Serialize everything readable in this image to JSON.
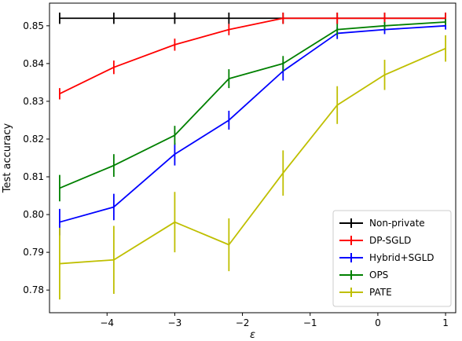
{
  "chart_data": {
    "type": "line",
    "title": "",
    "xlabel": "ε",
    "ylabel": "Test accuracy",
    "xlim": [
      -4.85,
      1.15
    ],
    "ylim": [
      0.774,
      0.856
    ],
    "xticks": [
      -4,
      -3,
      -2,
      -1,
      0,
      1
    ],
    "xtick_labels": [
      "−4",
      "−3",
      "−2",
      "−1",
      "0",
      "1"
    ],
    "yticks": [
      0.78,
      0.79,
      0.8,
      0.81,
      0.82,
      0.83,
      0.84,
      0.85
    ],
    "ytick_labels": [
      "0.78",
      "0.79",
      "0.80",
      "0.81",
      "0.82",
      "0.83",
      "0.84",
      "0.85"
    ],
    "grid": false,
    "legend_position": "lower-right",
    "x": [
      -4.7,
      -3.9,
      -3.0,
      -2.2,
      -1.4,
      -0.6,
      0.1,
      1.0
    ],
    "series": [
      {
        "name": "Non-private",
        "color": "#000000",
        "values": [
          0.852,
          0.852,
          0.852,
          0.852,
          0.852,
          0.852,
          0.852,
          0.852
        ],
        "errors": [
          0.0015,
          0.0015,
          0.0015,
          0.0015,
          0.0015,
          0.0015,
          0.0015,
          0.0015
        ]
      },
      {
        "name": "DP-SGLD",
        "color": "#ff0000",
        "values": [
          0.832,
          0.839,
          0.845,
          0.849,
          0.852,
          0.852,
          0.852,
          0.852
        ],
        "errors": [
          0.0015,
          0.0018,
          0.0016,
          0.0015,
          0.0015,
          0.0015,
          0.0015,
          0.0015
        ]
      },
      {
        "name": "Hybrid+SGLD",
        "color": "#0000ff",
        "values": [
          0.798,
          0.802,
          0.816,
          0.825,
          0.838,
          0.848,
          0.849,
          0.85
        ],
        "errors": [
          0.0035,
          0.0035,
          0.003,
          0.0025,
          0.0025,
          0.0015,
          0.0012,
          0.001
        ]
      },
      {
        "name": "OPS",
        "color": "#008000",
        "values": [
          0.807,
          0.813,
          0.821,
          0.836,
          0.84,
          0.849,
          0.85,
          0.851
        ],
        "errors": [
          0.0035,
          0.003,
          0.0025,
          0.0025,
          0.002,
          0.0015,
          0.001,
          0.0008
        ]
      },
      {
        "name": "PATE",
        "color": "#bfbf00",
        "values": [
          0.787,
          0.788,
          0.798,
          0.792,
          0.811,
          0.829,
          0.837,
          0.844
        ],
        "errors": [
          0.0095,
          0.009,
          0.008,
          0.007,
          0.006,
          0.005,
          0.004,
          0.0035
        ]
      }
    ]
  }
}
